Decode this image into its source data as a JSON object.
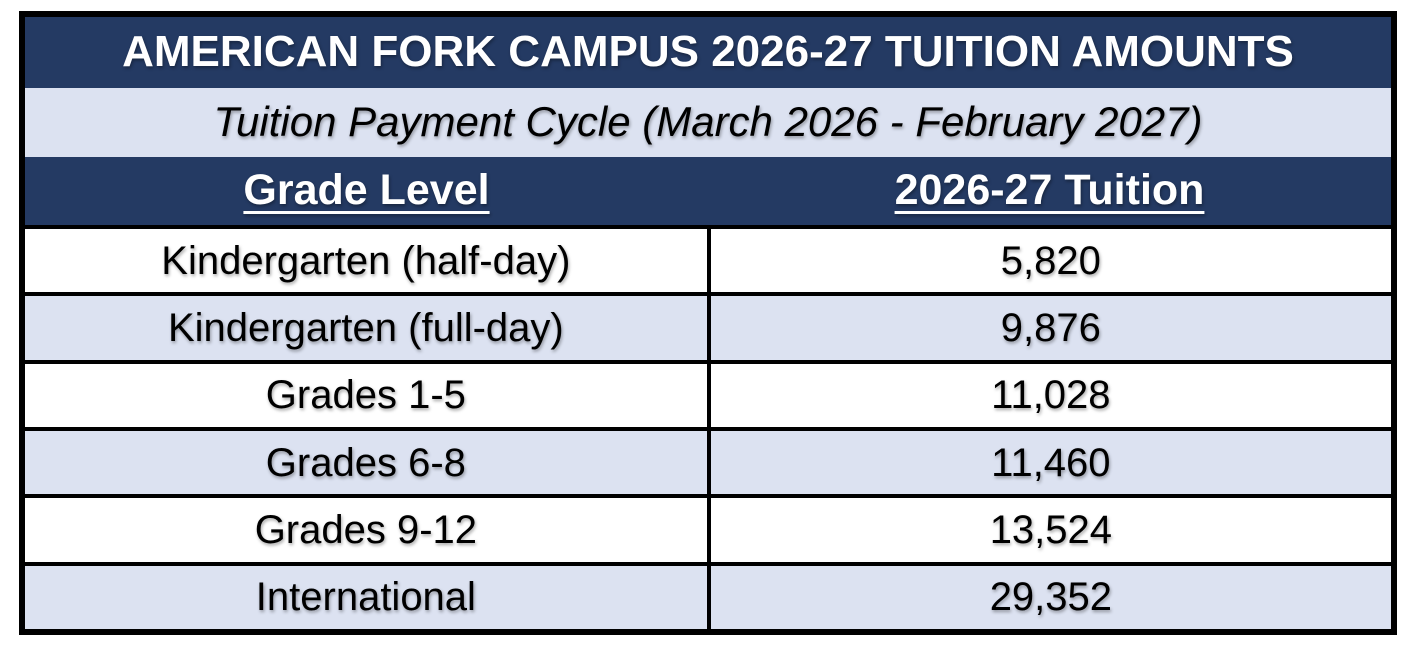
{
  "table": {
    "title": "AMERICAN FORK CAMPUS 2026-27 TUITION AMOUNTS",
    "subtitle": "Tuition Payment Cycle (March 2026 - February 2027)",
    "columns": [
      "Grade Level",
      "2026-27 Tuition"
    ],
    "rows": [
      {
        "grade": "Kindergarten (half-day)",
        "tuition": "5,820"
      },
      {
        "grade": "Kindergarten (full-day)",
        "tuition": "9,876"
      },
      {
        "grade": "Grades 1-5",
        "tuition": "11,028"
      },
      {
        "grade": "Grades 6-8",
        "tuition": "11,460"
      },
      {
        "grade": "Grades 9-12",
        "tuition": "13,524"
      },
      {
        "grade": "International",
        "tuition": "29,352"
      }
    ],
    "colors": {
      "header_bg": "#243A63",
      "band_bg": "#DCE2F1",
      "row_bg": "#FFFFFF",
      "border": "#000000",
      "header_text": "#FFFFFF",
      "body_text": "#000000"
    }
  }
}
